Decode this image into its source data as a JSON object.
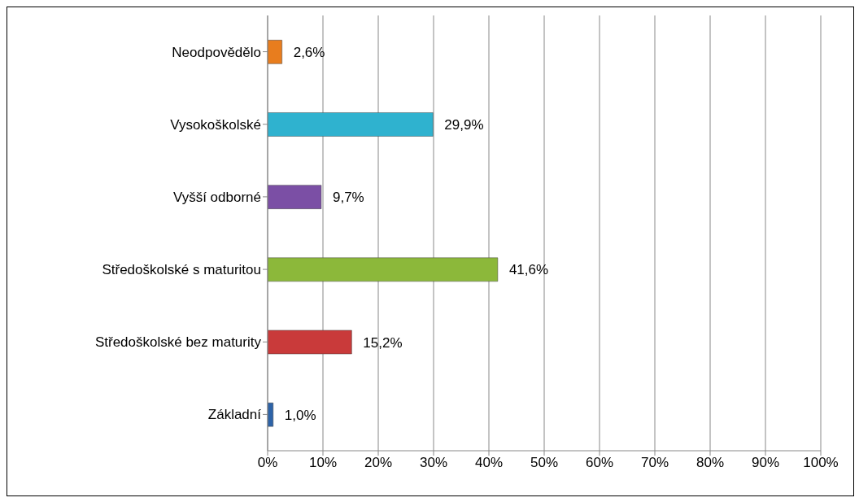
{
  "chart_data": {
    "type": "bar",
    "orientation": "horizontal",
    "categories": [
      "Neodpovědělo",
      "Vysokoškolské",
      "Vyšší odborné",
      "Středoškolské s maturitou",
      "Středoškolské bez maturity",
      "Základní"
    ],
    "values": [
      2.6,
      29.9,
      9.7,
      41.6,
      15.2,
      1.0
    ],
    "colors": [
      "#e87d1e",
      "#2fb2cf",
      "#7b4fa5",
      "#8cb83a",
      "#c93a3a",
      "#2d63a8"
    ],
    "value_labels": [
      "2,6%",
      "29,9%",
      "9,7%",
      "41,6%",
      "15,2%",
      "1,0%"
    ],
    "xlim": [
      0,
      100
    ],
    "xticks": [
      {
        "value": 0,
        "label": "0%"
      },
      {
        "value": 10,
        "label": "10%"
      },
      {
        "value": 20,
        "label": "20%"
      },
      {
        "value": 30,
        "label": "30%"
      },
      {
        "value": 40,
        "label": "40%"
      },
      {
        "value": 50,
        "label": "50%"
      },
      {
        "value": 60,
        "label": "60%"
      },
      {
        "value": 70,
        "label": "70%"
      },
      {
        "value": 80,
        "label": "80%"
      },
      {
        "value": 90,
        "label": "90%"
      },
      {
        "value": 100,
        "label": "100%"
      }
    ],
    "grid": "x",
    "legend": false
  }
}
